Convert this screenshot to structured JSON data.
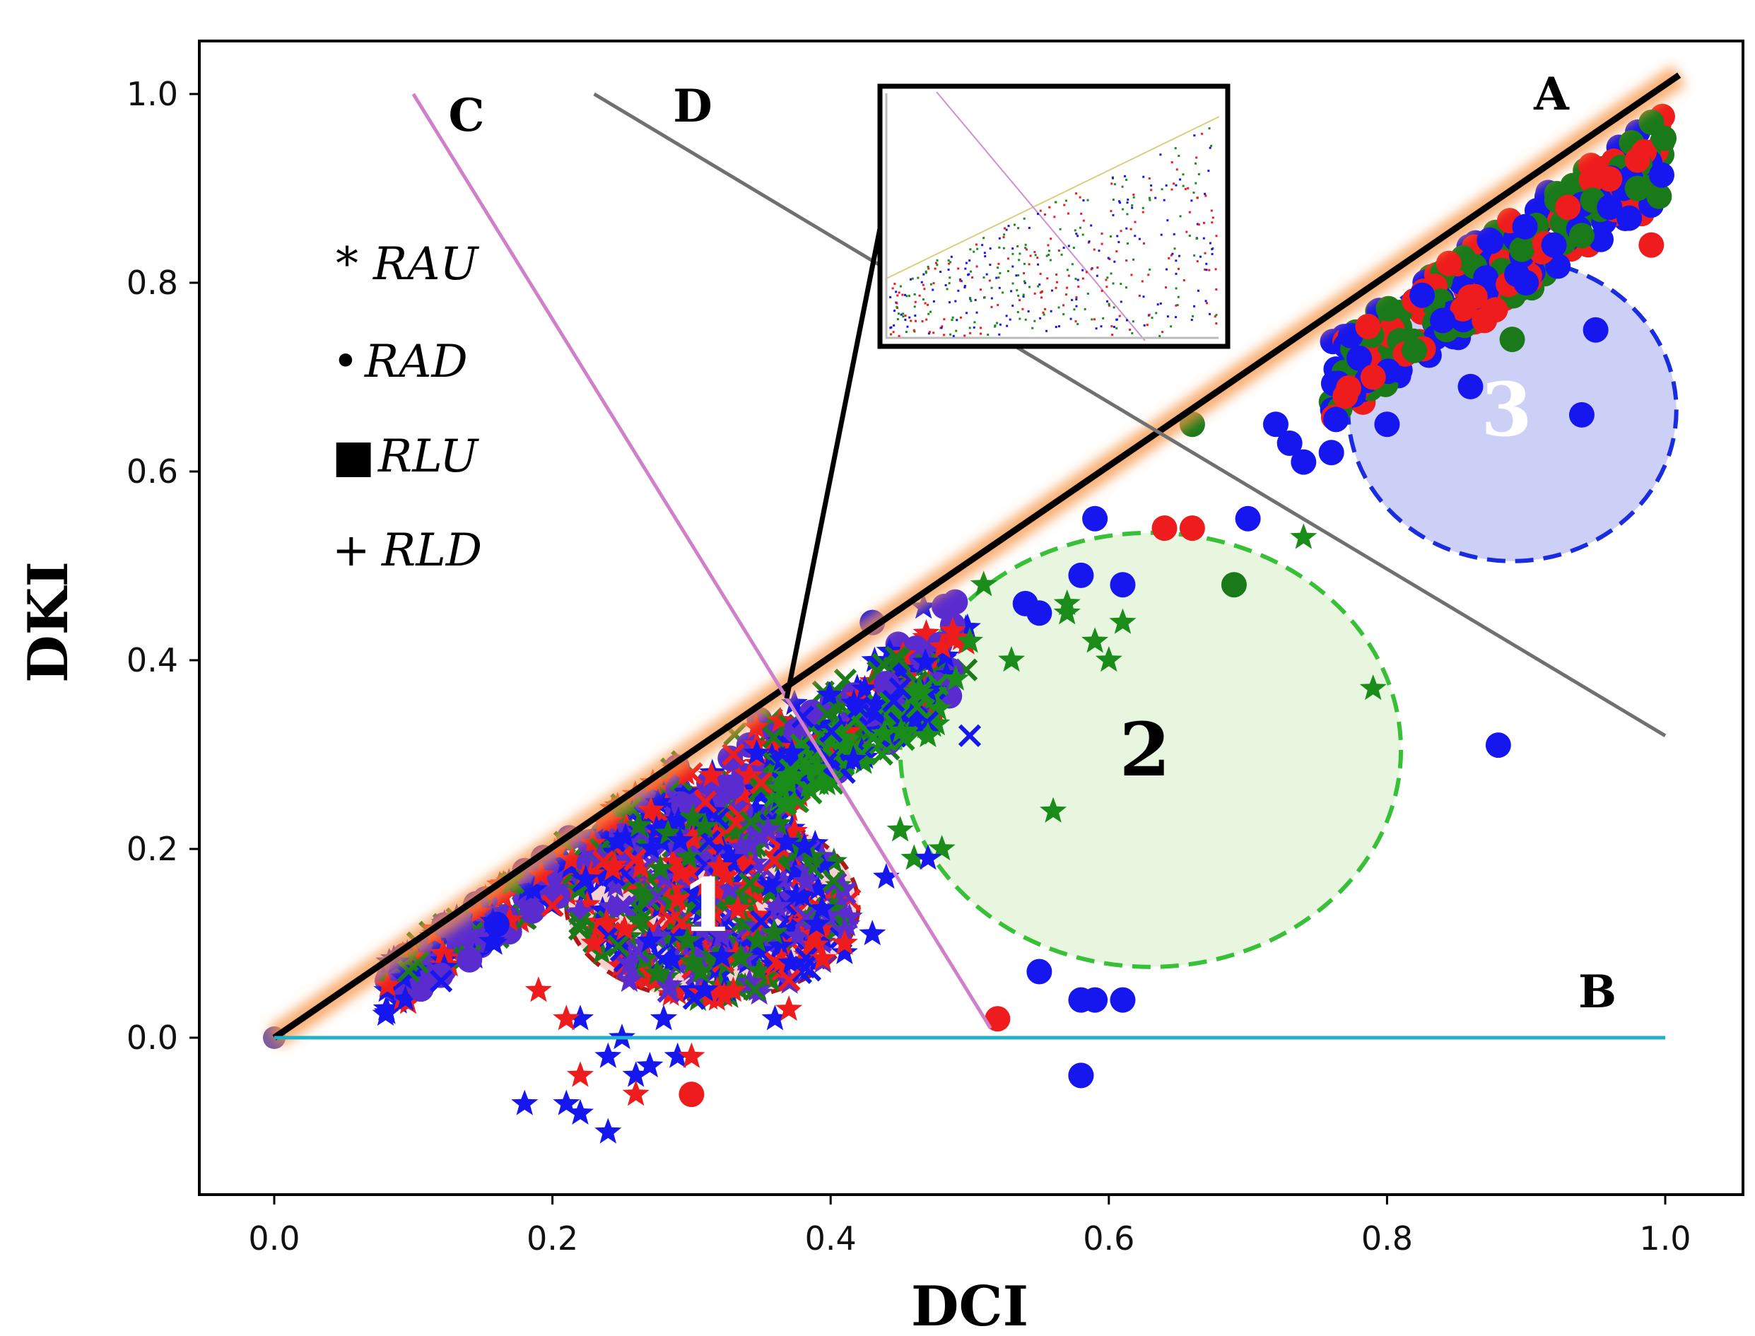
{
  "chart_data": {
    "type": "scatter",
    "xlabel": "DCI",
    "ylabel": "DKI",
    "xlim": [
      -0.055,
      1.05
    ],
    "ylim": [
      -0.16,
      1.06
    ],
    "xticks": [
      "0.0",
      "0.2",
      "0.4",
      "0.6",
      "0.8",
      "1.0"
    ],
    "yticks": [
      "0.0",
      "0.2",
      "0.4",
      "0.6",
      "0.8",
      "1.0"
    ],
    "legend": [
      {
        "symbol": "*",
        "label": "RAU"
      },
      {
        "symbol": "•",
        "label": "RAD"
      },
      {
        "symbol": "■",
        "label": "RLU"
      },
      {
        "symbol": "+",
        "label": "RLD"
      }
    ],
    "reference_lines": [
      {
        "name": "A",
        "color": "#000000",
        "x": [
          0.0,
          1.01
        ],
        "y": [
          0.0,
          1.02
        ],
        "glow": "#f79646"
      },
      {
        "name": "B",
        "color": "#20b2c8",
        "x": [
          0.0,
          1.0
        ],
        "y": [
          0.0,
          0.0
        ]
      },
      {
        "name": "C",
        "color": "#d080c8",
        "x": [
          0.1,
          0.515
        ],
        "y": [
          1.0,
          0.01
        ]
      },
      {
        "name": "D",
        "color": "#707070",
        "x": [
          0.23,
          1.0
        ],
        "y": [
          1.0,
          0.32
        ]
      }
    ],
    "clusters": [
      {
        "label": "1",
        "cx": 0.315,
        "cy": 0.14,
        "rx": 0.105,
        "ry": 0.1,
        "stroke": "#b01818",
        "fill": "#f8c8c8",
        "text_color": "#ffffff"
      },
      {
        "label": "2",
        "cx": 0.63,
        "cy": 0.305,
        "rx": 0.18,
        "ry": 0.23,
        "stroke": "#38c038",
        "fill": "#e4f4da",
        "text_color": "#000000"
      },
      {
        "label": "3",
        "cx": 0.89,
        "cy": 0.665,
        "rx": 0.118,
        "ry": 0.16,
        "stroke": "#1a2ce0",
        "fill": "#c4c8f4",
        "text_color": "#ffffff"
      }
    ],
    "series": [
      {
        "name": "blue-dots",
        "color": "#1616ee",
        "marker": "circle",
        "x": [
          0.7,
          0.72,
          0.73,
          0.74,
          0.76,
          0.8,
          0.86,
          0.94,
          0.95,
          0.88,
          0.59,
          0.54,
          0.55,
          0.58,
          0.61,
          0.58,
          0.61,
          0.58,
          0.16,
          0.43,
          0.55,
          0.59,
          0.58,
          0.78,
          0.84,
          0.9,
          0.92,
          0.96,
          0.97
        ],
        "y": [
          0.55,
          0.65,
          0.63,
          0.61,
          0.62,
          0.65,
          0.69,
          0.66,
          0.75,
          0.31,
          0.55,
          0.46,
          0.45,
          0.49,
          0.48,
          0.04,
          0.04,
          -0.04,
          0.12,
          0.44,
          0.07,
          0.04,
          -0.04,
          0.72,
          0.76,
          0.8,
          0.84,
          0.88,
          0.9
        ]
      },
      {
        "name": "red-dots",
        "color": "#ee1c1c",
        "marker": "circle",
        "x": [
          0.64,
          0.66,
          0.77,
          0.79,
          0.3,
          0.52,
          0.99,
          0.96,
          0.98,
          0.93,
          0.87
        ],
        "y": [
          0.54,
          0.54,
          0.68,
          0.7,
          -0.06,
          0.02,
          0.84,
          0.91,
          0.93,
          0.88,
          0.76
        ],
        "note": "red circles"
      },
      {
        "name": "green-dots",
        "color": "#1a7a1a",
        "marker": "circle",
        "x": [
          0.69,
          0.66,
          0.89,
          0.98,
          0.99,
          0.94
        ],
        "y": [
          0.48,
          0.65,
          0.74,
          0.9,
          0.97,
          0.85
        ]
      },
      {
        "name": "green-stars",
        "color": "#1a8c1a",
        "marker": "star",
        "x": [
          0.74,
          0.57,
          0.59,
          0.6,
          0.61,
          0.53,
          0.57,
          0.79,
          0.56,
          0.5,
          0.49,
          0.47,
          0.45,
          0.46,
          0.48,
          0.51
        ],
        "y": [
          0.53,
          0.45,
          0.42,
          0.4,
          0.44,
          0.4,
          0.46,
          0.37,
          0.24,
          0.42,
          0.38,
          0.32,
          0.22,
          0.19,
          0.2,
          0.48
        ]
      },
      {
        "name": "blue-stars",
        "color": "#1616ee",
        "marker": "star",
        "x": [
          0.18,
          0.21,
          0.22,
          0.24,
          0.24,
          0.22,
          0.26,
          0.27,
          0.28,
          0.29,
          0.25,
          0.47,
          0.43,
          0.44,
          0.41,
          0.39,
          0.36
        ],
        "y": [
          -0.07,
          -0.07,
          -0.08,
          -0.1,
          -0.02,
          0.02,
          -0.04,
          -0.03,
          0.02,
          -0.02,
          0.0,
          0.19,
          0.11,
          0.17,
          0.09,
          0.12,
          0.02
        ]
      },
      {
        "name": "red-stars",
        "color": "#ee1c1c",
        "marker": "star",
        "x": [
          0.19,
          0.21,
          0.22,
          0.26,
          0.3,
          0.23,
          0.33,
          0.37,
          0.41
        ],
        "y": [
          0.05,
          0.02,
          -0.04,
          -0.06,
          -0.02,
          0.1,
          0.05,
          0.03,
          0.1
        ]
      },
      {
        "name": "blue-crosses",
        "color": "#1616ee",
        "marker": "x",
        "x": [
          0.12,
          0.5,
          0.45,
          0.42,
          0.38
        ],
        "y": [
          0.06,
          0.32,
          0.37,
          0.35,
          0.34
        ]
      },
      {
        "name": "red-crosses",
        "color": "#ee1c1c",
        "marker": "x",
        "x": [
          0.2,
          0.3,
          0.31,
          0.33,
          0.35
        ],
        "y": [
          0.14,
          0.28,
          0.25,
          0.3,
          0.27
        ]
      }
    ],
    "inset": {
      "description": "zoomed view of intersection of lines A and C",
      "colors": [
        "#1616ee",
        "#ee1c1c",
        "#1a8c1a"
      ]
    }
  }
}
